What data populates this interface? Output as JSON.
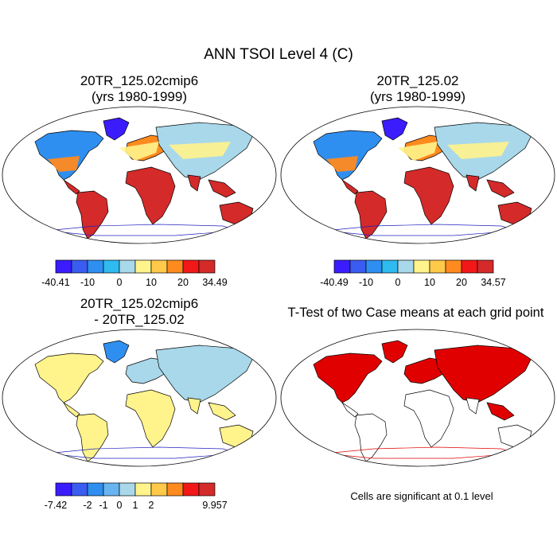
{
  "figure": {
    "title": "ANN TSOI Level 4 (C)"
  },
  "panels": [
    {
      "id": "case1",
      "title_line1": "20TR_125.02cmip6",
      "title_line2": "(yrs 1980-1999)",
      "type": "field"
    },
    {
      "id": "case2",
      "title_line1": "20TR_125.02",
      "title_line2": "(yrs 1980-1999)",
      "type": "field"
    },
    {
      "id": "diff",
      "title_line1": "20TR_125.02cmip6",
      "title_line2": "- 20TR_125.02",
      "type": "difference"
    },
    {
      "id": "ttest",
      "title_line1": "T-Test of two Case means at each grid point",
      "title_line2": "",
      "type": "significance",
      "note": "Cells are significant at 0.1 level"
    }
  ],
  "colorbars": [
    {
      "id": "cb1",
      "colors": [
        "#3a1cff",
        "#3a5cf0",
        "#2f8ff0",
        "#2fbaf0",
        "#a8d8ea",
        "#fff38c",
        "#ffc94a",
        "#ff8a1e",
        "#f21818",
        "#d42a2a"
      ],
      "labels": [
        "-40.41",
        "-10",
        "0",
        "10",
        "20",
        "34.49"
      ],
      "label_positions": [
        0,
        2,
        4,
        6,
        8,
        10
      ]
    },
    {
      "id": "cb2",
      "colors": [
        "#3a1cff",
        "#3a5cf0",
        "#2f8ff0",
        "#2fbaf0",
        "#a8d8ea",
        "#fff38c",
        "#ffc94a",
        "#ff8a1e",
        "#f21818",
        "#d42a2a"
      ],
      "labels": [
        "-40.49",
        "-10",
        "0",
        "10",
        "20",
        "34.57"
      ],
      "label_positions": [
        0,
        2,
        4,
        6,
        8,
        10
      ]
    },
    {
      "id": "cb3",
      "colors": [
        "#3a1cff",
        "#3a5cf0",
        "#2f8ff0",
        "#68b4f0",
        "#a8d8ea",
        "#fff38c",
        "#ffc94a",
        "#ff8a1e",
        "#f21818",
        "#d42a2a"
      ],
      "labels": [
        "-7.42",
        "-2",
        "-1",
        "0",
        "1",
        "2",
        "9.957"
      ],
      "label_positions": [
        0,
        2,
        3,
        4,
        5,
        6,
        10
      ]
    }
  ],
  "colors": {
    "warm": "#d42a2a",
    "orange": "#ff8a1e",
    "yellow": "#fff38c",
    "lightblue": "#a8d8ea",
    "blue": "#2f8ff0",
    "darkblue": "#3a1cff",
    "significant": "#e00000",
    "antarctic_coast": "#2020c0"
  }
}
